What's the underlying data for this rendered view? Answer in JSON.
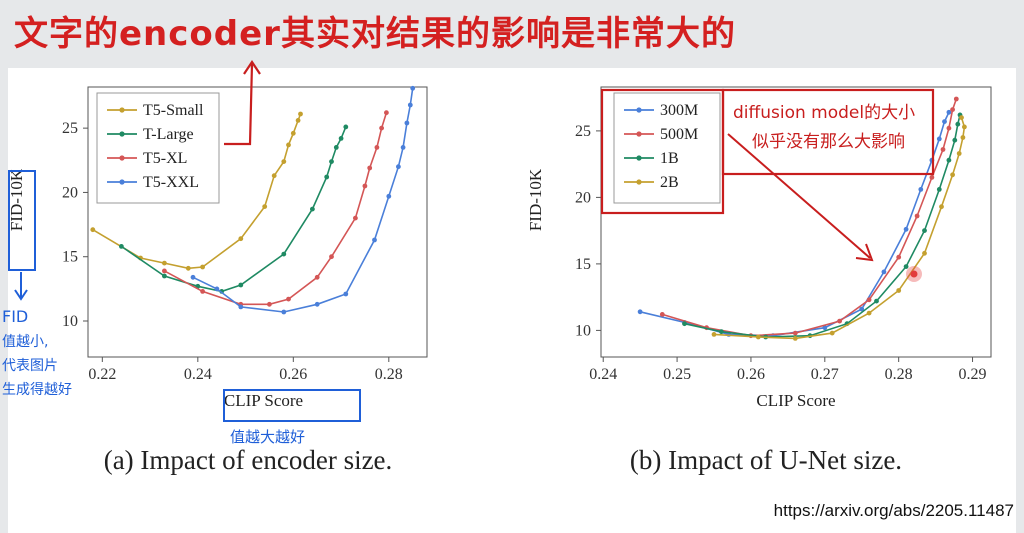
{
  "top_note": "文字的encoder其实对结果的影响是非常大的",
  "source_url": "https://arxiv.org/abs/2205.11487",
  "colors": {
    "annotation_red": "#c81e1e",
    "annotation_blue": "#1f5fd8",
    "gold": "#c4a02f",
    "green": "#1f8a63",
    "red": "#d45656",
    "blue": "#4a7fd9"
  },
  "annotations": {
    "b_note_line1": "diffusion model的大小",
    "b_note_line2": "似乎没有那么大影响",
    "fid_note": [
      "FID",
      "值越小,",
      "代表图片",
      "生成得越好"
    ],
    "clip_note": "值越大越好"
  },
  "chart_data": [
    {
      "type": "line",
      "caption": "(a) Impact of encoder size.",
      "xlabel": "CLIP Score",
      "ylabel": "FID-10K",
      "xlim": [
        0.217,
        0.288
      ],
      "ylim": [
        7.2,
        28.2
      ],
      "xticks": [
        0.22,
        0.24,
        0.26,
        0.28
      ],
      "xtick_labels": [
        "0.22",
        "0.24",
        "0.26",
        "0.28"
      ],
      "yticks": [
        10,
        15,
        20,
        25
      ],
      "ytick_labels": [
        "10",
        "15",
        "20",
        "25"
      ],
      "grid": false,
      "legend_position": "top-left",
      "series": [
        {
          "name": "T5-Small",
          "color": "#c4a02f",
          "points": [
            [
              0.218,
              17.1
            ],
            [
              0.228,
              14.9
            ],
            [
              0.233,
              14.5
            ],
            [
              0.238,
              14.1
            ],
            [
              0.241,
              14.2
            ],
            [
              0.249,
              16.4
            ],
            [
              0.254,
              18.9
            ],
            [
              0.256,
              21.3
            ],
            [
              0.258,
              22.4
            ],
            [
              0.259,
              23.7
            ],
            [
              0.26,
              24.6
            ],
            [
              0.261,
              25.6
            ],
            [
              0.2615,
              26.1
            ]
          ]
        },
        {
          "name": "T-Large",
          "color": "#1f8a63",
          "points": [
            [
              0.224,
              15.8
            ],
            [
              0.233,
              13.5
            ],
            [
              0.24,
              12.7
            ],
            [
              0.245,
              12.3
            ],
            [
              0.249,
              12.8
            ],
            [
              0.258,
              15.2
            ],
            [
              0.264,
              18.7
            ],
            [
              0.267,
              21.2
            ],
            [
              0.268,
              22.4
            ],
            [
              0.269,
              23.5
            ],
            [
              0.27,
              24.2
            ],
            [
              0.271,
              25.1
            ]
          ]
        },
        {
          "name": "T5-XL",
          "color": "#d45656",
          "points": [
            [
              0.233,
              13.9
            ],
            [
              0.241,
              12.3
            ],
            [
              0.249,
              11.3
            ],
            [
              0.255,
              11.3
            ],
            [
              0.259,
              11.7
            ],
            [
              0.265,
              13.4
            ],
            [
              0.268,
              15.0
            ],
            [
              0.273,
              18.0
            ],
            [
              0.275,
              20.5
            ],
            [
              0.276,
              21.9
            ],
            [
              0.2775,
              23.5
            ],
            [
              0.2785,
              25.0
            ],
            [
              0.2795,
              26.2
            ]
          ]
        },
        {
          "name": "T5-XXL",
          "color": "#4a7fd9",
          "points": [
            [
              0.239,
              13.4
            ],
            [
              0.244,
              12.5
            ],
            [
              0.249,
              11.1
            ],
            [
              0.258,
              10.7
            ],
            [
              0.265,
              11.3
            ],
            [
              0.271,
              12.1
            ],
            [
              0.277,
              16.3
            ],
            [
              0.28,
              19.7
            ],
            [
              0.282,
              22.0
            ],
            [
              0.283,
              23.5
            ],
            [
              0.2838,
              25.4
            ],
            [
              0.2845,
              26.8
            ],
            [
              0.285,
              28.1
            ]
          ]
        }
      ]
    },
    {
      "type": "line",
      "caption": "(b) Impact of U-Net size.",
      "xlabel": "CLIP Score",
      "ylabel": "FID-10K",
      "xlim": [
        0.2397,
        0.2925
      ],
      "ylim": [
        8.0,
        28.3
      ],
      "xticks": [
        0.24,
        0.25,
        0.26,
        0.27,
        0.28,
        0.29
      ],
      "xtick_labels": [
        "0.24",
        "0.25",
        "0.26",
        "0.27",
        "0.28",
        "0.29"
      ],
      "yticks": [
        10,
        15,
        20,
        25
      ],
      "ytick_labels": [
        "10",
        "15",
        "20",
        "25"
      ],
      "grid": false,
      "legend_position": "top-left",
      "series": [
        {
          "name": "300M",
          "color": "#4a7fd9",
          "points": [
            [
              0.245,
              11.4
            ],
            [
              0.251,
              10.6
            ],
            [
              0.257,
              9.7
            ],
            [
              0.263,
              9.6
            ],
            [
              0.27,
              10.2
            ],
            [
              0.275,
              11.6
            ],
            [
              0.278,
              14.4
            ],
            [
              0.281,
              17.6
            ],
            [
              0.283,
              20.6
            ],
            [
              0.2845,
              22.8
            ],
            [
              0.2855,
              24.4
            ],
            [
              0.2862,
              25.7
            ],
            [
              0.2868,
              26.4
            ]
          ]
        },
        {
          "name": "500M",
          "color": "#d45656",
          "points": [
            [
              0.248,
              11.2
            ],
            [
              0.254,
              10.2
            ],
            [
              0.26,
              9.6
            ],
            [
              0.266,
              9.8
            ],
            [
              0.272,
              10.7
            ],
            [
              0.276,
              12.3
            ],
            [
              0.28,
              15.5
            ],
            [
              0.2825,
              18.6
            ],
            [
              0.2845,
              21.5
            ],
            [
              0.286,
              23.6
            ],
            [
              0.2868,
              25.2
            ],
            [
              0.2873,
              26.6
            ],
            [
              0.2878,
              27.4
            ]
          ]
        },
        {
          "name": "1B",
          "color": "#1f8a63",
          "points": [
            [
              0.251,
              10.5
            ],
            [
              0.256,
              9.9
            ],
            [
              0.262,
              9.5
            ],
            [
              0.268,
              9.6
            ],
            [
              0.273,
              10.5
            ],
            [
              0.277,
              12.2
            ],
            [
              0.281,
              14.8
            ],
            [
              0.2835,
              17.5
            ],
            [
              0.2855,
              20.6
            ],
            [
              0.2868,
              22.8
            ],
            [
              0.2876,
              24.3
            ],
            [
              0.288,
              25.5
            ],
            [
              0.2883,
              26.2
            ]
          ]
        },
        {
          "name": "2B",
          "color": "#c4a02f",
          "points": [
            [
              0.255,
              9.7
            ],
            [
              0.261,
              9.5
            ],
            [
              0.266,
              9.4
            ],
            [
              0.271,
              9.8
            ],
            [
              0.276,
              11.3
            ],
            [
              0.28,
              13.0
            ],
            [
              0.2835,
              15.8
            ],
            [
              0.2858,
              19.3
            ],
            [
              0.2873,
              21.7
            ],
            [
              0.2882,
              23.3
            ],
            [
              0.2887,
              24.5
            ],
            [
              0.2889,
              25.3
            ],
            [
              0.2885,
              26.0
            ]
          ]
        }
      ]
    }
  ]
}
